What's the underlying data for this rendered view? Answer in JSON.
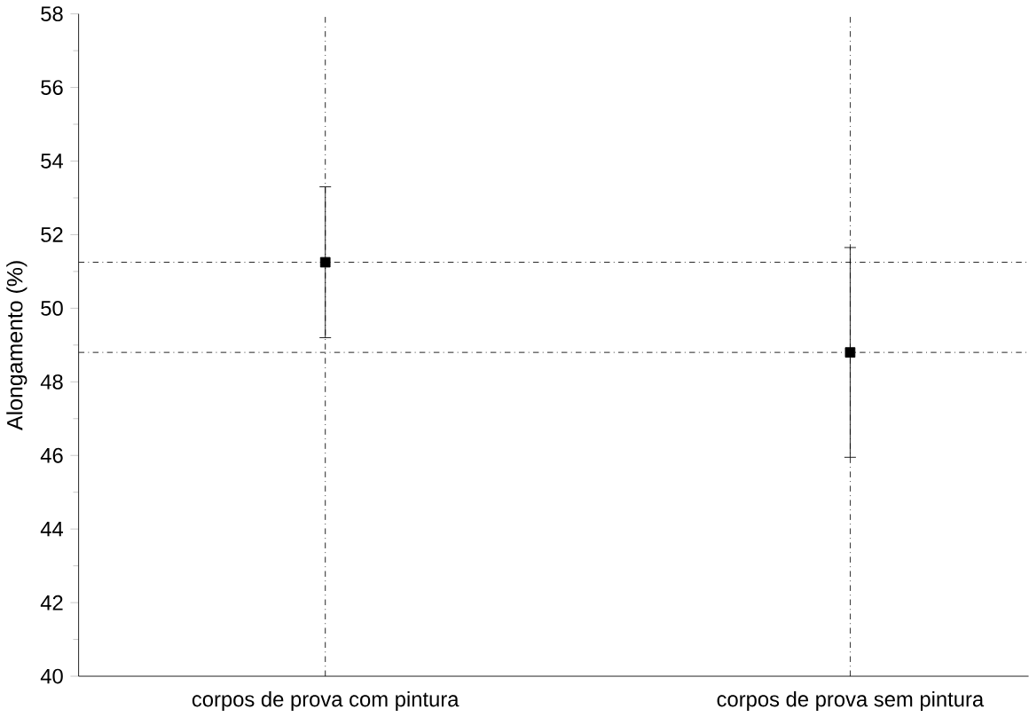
{
  "chart_data": {
    "type": "scatter",
    "ylabel": "Alongamento (%)",
    "categories": [
      "corpos de prova com pintura",
      "corpos de prova sem pintura"
    ],
    "series": [
      {
        "color": "#000000",
        "values": [
          51.25,
          48.8
        ],
        "errors": [
          [
            49.2,
            53.3
          ],
          [
            45.95,
            51.65
          ]
        ]
      }
    ],
    "ylim": [
      40,
      58
    ],
    "yticks": [
      40,
      42,
      44,
      46,
      48,
      50,
      52,
      54,
      56,
      58
    ],
    "marker": "square",
    "grid": false,
    "ref_lines": [
      {
        "axis": "y",
        "value": 51.25,
        "line_style": "dashdot",
        "color": "#000000"
      },
      {
        "axis": "y",
        "value": 48.8,
        "line_style": "dashdot",
        "color": "#000000"
      },
      {
        "axis": "x",
        "value": "corpos de prova com pintura",
        "line_style": "dashdot",
        "color": "#000000"
      },
      {
        "axis": "x",
        "value": "corpos de prova sem pintura",
        "line_style": "dashdot",
        "color": "#000000"
      }
    ]
  }
}
